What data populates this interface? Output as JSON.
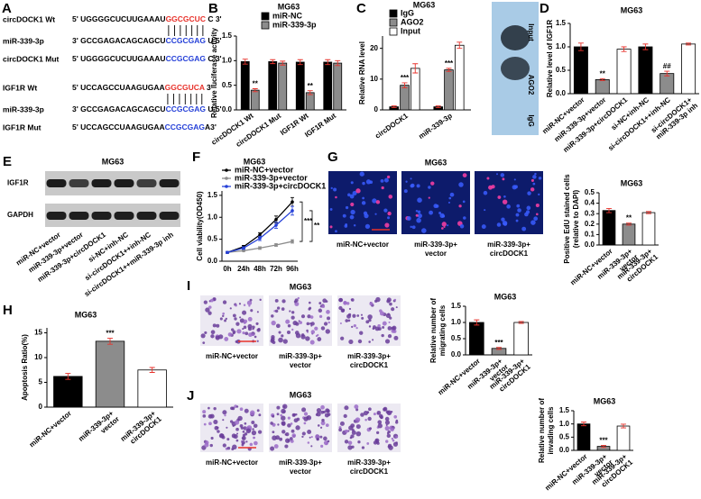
{
  "sequence_panel": {
    "panel": "A",
    "rows": [
      {
        "label": "circDOCK1 Wt",
        "parts": [
          {
            "text": "5' UGGGGCUCUUGAAAU",
            "color": "#000000"
          },
          {
            "text": "GGCGCUC",
            "color": "#e8322b"
          },
          {
            "text": " C 3'",
            "color": "#000000"
          }
        ]
      },
      {
        "label": "miR-339-3p",
        "parts": [
          {
            "text": "3' GCCGAGACAGCAGCU",
            "color": "#000000"
          },
          {
            "text": "CCGCGAG",
            "color": "#2540d8"
          },
          {
            "text": " U 5'",
            "color": "#000000"
          }
        ]
      },
      {
        "label": "circDOCK1 Mut",
        "parts": [
          {
            "text": "5' UGGGGCUCUUGAAAU",
            "color": "#000000"
          },
          {
            "text": "CCGCGAG",
            "color": "#2540d8"
          },
          {
            "text": " C 3'",
            "color": "#000000"
          }
        ]
      },
      {
        "label": "IGF1R Wt",
        "parts": [
          {
            "text": "5' UCCAGCCUAAGUGAA",
            "color": "#000000"
          },
          {
            "text": "GGCGUCA",
            "color": "#e8322b"
          },
          {
            "text": " 3'",
            "color": "#000000"
          }
        ]
      },
      {
        "label": "miR-339-3p",
        "parts": [
          {
            "text": "3' GCCGAGACAGCAGCU",
            "color": "#000000"
          },
          {
            "text": "CCGCGAG",
            "color": "#2540d8"
          },
          {
            "text": " U 5'",
            "color": "#000000"
          }
        ]
      },
      {
        "label": "IGF1R Mut",
        "parts": [
          {
            "text": "5' UCCAGCCUAAGUGAA",
            "color": "#000000"
          },
          {
            "text": "CCGCGAG",
            "color": "#2540d8"
          },
          {
            "text": "A3'",
            "color": "#000000"
          }
        ]
      }
    ]
  },
  "blots": [
    {
      "labels": [
        "Input",
        "AGO2",
        "IgG"
      ]
    },
    {
      "panel": "E",
      "title": "MG63",
      "bands": [
        "IGF1R",
        "GAPDH"
      ],
      "lanes": [
        "miR-NC+vector",
        "miR-339-3p+vector",
        "miR-339-3p+circDOCK1",
        "si-NC+inh-NC",
        "si-circDOCK1++inh-NC",
        "si-circDOCK1++miR-339-3p inh"
      ]
    }
  ],
  "image_panels": [
    {
      "panel": "G",
      "title": "MG63",
      "captions": [
        [
          "miR-NC+vector"
        ],
        [
          "miR-339-3p+",
          "vector"
        ],
        [
          "miR-339-3p+",
          "circDOCK1"
        ]
      ]
    },
    {
      "panel": "I",
      "title": "MG63",
      "captions": [
        [
          "miR-NC+vector"
        ],
        [
          "miR-339-3p+",
          "vector"
        ],
        [
          "miR-339-3p+",
          "circDOCK1"
        ]
      ]
    },
    {
      "panel": "J",
      "title": "MG63",
      "captions": [
        [
          "miR-NC+vector"
        ],
        [
          "miR-339-3p+",
          "vector"
        ],
        [
          "miR-339-3p+",
          "circDOCK1"
        ]
      ]
    }
  ],
  "chart_data": [
    {
      "type": "bar",
      "panel": "B",
      "title": "MG63",
      "y_label": [
        "Relative luciferase activity"
      ],
      "categories": [
        "circDOCK1 Wt",
        "circDOCK1 Mut",
        "IGF1R Wt",
        "IGF1R Mut"
      ],
      "series": [
        {
          "name": "miR-NC",
          "color": "#000000",
          "values": [
            0.98,
            0.98,
            0.97,
            0.97
          ],
          "errors": [
            0.05,
            0.04,
            0.05,
            0.05
          ],
          "significance": [
            null,
            null,
            null,
            null
          ]
        },
        {
          "name": "miR-339-3p",
          "color": "#8c8c8c",
          "values": [
            0.4,
            0.95,
            0.35,
            0.95
          ],
          "errors": [
            0.03,
            0.04,
            0.04,
            0.05
          ],
          "significance": [
            "**",
            null,
            "**",
            null
          ]
        }
      ],
      "error_color": "#e8322b",
      "ylim": [
        0,
        1.5
      ],
      "yticks": [
        {
          "value": 0,
          "label": "0.0"
        },
        0.5,
        {
          "value": 1,
          "label": "1.0"
        },
        1.5
      ]
    },
    {
      "type": "bar",
      "panel": "C",
      "title": "MG63",
      "y_label": [
        "Relative RNA level"
      ],
      "categories": [
        "circDOCK1",
        "miR-339-3p"
      ],
      "series": [
        {
          "name": "IgG",
          "color": "#000000",
          "values": [
            1,
            1
          ],
          "errors": [
            0.3,
            0.3
          ],
          "significance": [
            null,
            null
          ]
        },
        {
          "name": "AGO2",
          "color": "#8c8c8c",
          "values": [
            8,
            13
          ],
          "errors": [
            0.8,
            0.5
          ],
          "significance": [
            "***",
            "***"
          ]
        },
        {
          "name": "Input",
          "color": "#ffffff",
          "values": [
            13.5,
            21
          ],
          "errors": [
            1.5,
            1
          ],
          "significance": [
            null,
            null
          ]
        }
      ],
      "error_color": "#e8322b",
      "ylim": [
        0,
        24
      ],
      "yticks": [
        0,
        10,
        20
      ]
    },
    {
      "type": "bar",
      "panel": "D",
      "title": "MG63",
      "y_label": [
        "Relative level of IGF1R"
      ],
      "categories": [
        "miR-NC+vector",
        "miR-339-3p+vector",
        "miR-339-3p+circDOCK1",
        "si-NC+inh-NC",
        "si-circDOCK1++inh-NC",
        [
          "si-circDOCK1+",
          "miR-339-3p inh"
        ]
      ],
      "values": [
        1.0,
        0.3,
        0.95,
        1.0,
        0.43,
        1.06
      ],
      "errors": [
        0.08,
        0.02,
        0.05,
        0.06,
        0.05,
        0.02
      ],
      "significance": [
        null,
        "**",
        null,
        null,
        "##",
        null
      ],
      "colors": [
        "#000000",
        "#8c8c8c",
        "#ffffff",
        "#000000",
        "#8c8c8c",
        "#ffffff"
      ],
      "error_color": "#e8322b",
      "ylim": [
        0,
        1.5
      ],
      "yticks": [
        {
          "value": 0,
          "label": "0.0"
        },
        0.5,
        {
          "value": 1,
          "label": "1.0"
        },
        1.5
      ]
    },
    {
      "type": "line",
      "panel": "F",
      "title": "MG63",
      "y_label": [
        "Cell viability(OD450)"
      ],
      "categories": [
        "0h",
        "24h",
        "48h",
        "72h",
        "96h"
      ],
      "series": [
        {
          "name": "miR-NC+vector",
          "color": "#000000",
          "values": [
            0.2,
            0.33,
            0.6,
            0.95,
            1.35
          ],
          "errors": [
            0.02,
            0.03,
            0.05,
            0.08,
            0.1
          ]
        },
        {
          "name": "miR-339-3p+vector",
          "color": "#8c8c8c",
          "values": [
            0.2,
            0.24,
            0.3,
            0.37,
            0.45
          ],
          "errors": [
            0.02,
            0.02,
            0.03,
            0.03,
            0.04
          ]
        },
        {
          "name": "miR-339-3p+circDOCK1",
          "color": "#2540d8",
          "values": [
            0.2,
            0.3,
            0.52,
            0.82,
            1.15
          ],
          "errors": [
            0.02,
            0.03,
            0.05,
            0.07,
            0.1
          ]
        }
      ],
      "comparisons": [
        "***",
        "**"
      ],
      "ylim": [
        0,
        1.6
      ],
      "yticks": [
        {
          "value": 0,
          "label": "0.0"
        },
        0.5,
        {
          "value": 1,
          "label": "1.0"
        },
        1.5
      ]
    },
    {
      "type": "bar",
      "title": "MG63",
      "y_label": [
        "Positive EdU stained cells",
        "(relative to DAPI)"
      ],
      "categories": [
        [
          "miR-NC+vector"
        ],
        [
          "miR-339-3p+",
          "vector"
        ],
        [
          "miR-339-3p+",
          "circDOCK1"
        ]
      ],
      "values": [
        0.33,
        0.2,
        0.31
      ],
      "errors": [
        0.02,
        0.01,
        0.01
      ],
      "significance": [
        null,
        "**",
        null
      ],
      "colors": [
        "#000000",
        "#8c8c8c",
        "#ffffff"
      ],
      "error_color": "#e8322b",
      "ylim": [
        0,
        0.5
      ],
      "yticks": [
        {
          "value": 0,
          "label": "0.0"
        },
        0.1,
        0.2,
        0.3,
        0.4,
        0.5
      ]
    },
    {
      "type": "bar",
      "panel": "H",
      "title": "MG63",
      "y_label": [
        "Apoptosis Ratio(%)"
      ],
      "categories": [
        [
          "miR-NC+vector"
        ],
        [
          "miR-339-3p+",
          "vector"
        ],
        [
          "miR-339-3p+",
          "circDOCK1"
        ]
      ],
      "values": [
        6.2,
        13.3,
        7.5
      ],
      "errors": [
        0.6,
        0.6,
        0.5
      ],
      "significance": [
        null,
        "***",
        null
      ],
      "colors": [
        "#000000",
        "#8c8c8c",
        "#ffffff"
      ],
      "error_color": "#e8322b",
      "ylim": [
        0,
        16
      ],
      "yticks": [
        0,
        5,
        10,
        15
      ]
    },
    {
      "type": "bar",
      "title": "MG63",
      "y_label": [
        "Relative number of",
        "migrating cells"
      ],
      "categories": [
        [
          "miR-NC+vector"
        ],
        [
          "miR-339-3p+",
          "vector"
        ],
        [
          "miR-339-3p+",
          "circDOCK1"
        ]
      ],
      "values": [
        1.0,
        0.2,
        1.0
      ],
      "errors": [
        0.08,
        0.03,
        0.03
      ],
      "significance": [
        null,
        "***",
        null
      ],
      "colors": [
        "#000000",
        "#8c8c8c",
        "#ffffff"
      ],
      "error_color": "#e8322b",
      "ylim": [
        0,
        1.5
      ],
      "yticks": [
        {
          "value": 0,
          "label": "0.0"
        },
        0.5,
        {
          "value": 1,
          "label": "1.0"
        },
        1.5
      ]
    },
    {
      "type": "bar",
      "title": "MG63",
      "y_label": [
        "Relative number of",
        "invading cells"
      ],
      "categories": [
        [
          "miR-NC+vector"
        ],
        [
          "miR-339-3p+",
          "vector"
        ],
        [
          "miR-339-3p+",
          "circDOCK1"
        ]
      ],
      "values": [
        1.0,
        0.15,
        0.92
      ],
      "errors": [
        0.07,
        0.04,
        0.07
      ],
      "significance": [
        null,
        "***",
        null
      ],
      "colors": [
        "#000000",
        "#8c8c8c",
        "#ffffff"
      ],
      "error_color": "#e8322b",
      "ylim": [
        0,
        1.5
      ],
      "yticks": [
        {
          "value": 0,
          "label": "0.0"
        },
        0.5,
        {
          "value": 1,
          "label": "1.0"
        },
        1.5
      ]
    }
  ]
}
